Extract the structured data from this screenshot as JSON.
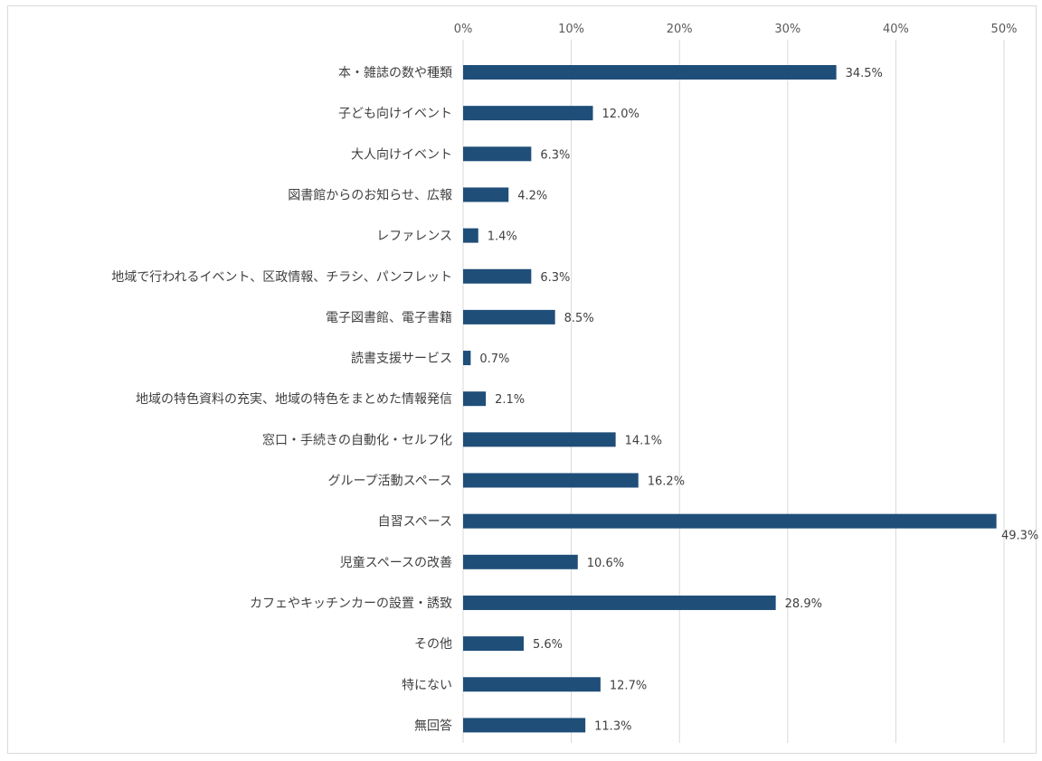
{
  "colors": {
    "bar": "#1f4e79",
    "grid": "#d9d9d9",
    "text": "#404040"
  },
  "chart_data": {
    "type": "bar",
    "orientation": "horizontal",
    "xlim": [
      0,
      50
    ],
    "grid": true,
    "legend": "none",
    "x_ticks": [
      0,
      10,
      20,
      30,
      40,
      50
    ],
    "x_tick_labels": [
      "0%",
      "10%",
      "20%",
      "30%",
      "40%",
      "50%"
    ],
    "categories": [
      "本・雑誌の数や種類",
      "子ども向けイベント",
      "大人向けイベント",
      "図書館からのお知らせ、広報",
      "レファレンス",
      "地域で行われるイベント、区政情報、チラシ、パンフレット",
      "電子図書館、電子書籍",
      "読書支援サービス",
      "地域の特色資料の充実、地域の特色をまとめた情報発信",
      "窓口・手続きの自動化・セルフ化",
      "グループ活動スペース",
      "自習スペース",
      "児童スペースの改善",
      "カフェやキッチンカーの設置・誘致",
      "その他",
      "特にない",
      "無回答"
    ],
    "values": [
      34.5,
      12.0,
      6.3,
      4.2,
      1.4,
      6.3,
      8.5,
      0.7,
      2.1,
      14.1,
      16.2,
      49.3,
      10.6,
      28.9,
      5.6,
      12.7,
      11.3
    ],
    "value_labels": [
      "34.5%",
      "12.0%",
      "6.3%",
      "4.2%",
      "1.4%",
      "6.3%",
      "8.5%",
      "0.7%",
      "2.1%",
      "14.1%",
      "16.2%",
      "49.3%",
      "10.6%",
      "28.9%",
      "5.6%",
      "12.7%",
      "11.3%"
    ]
  }
}
